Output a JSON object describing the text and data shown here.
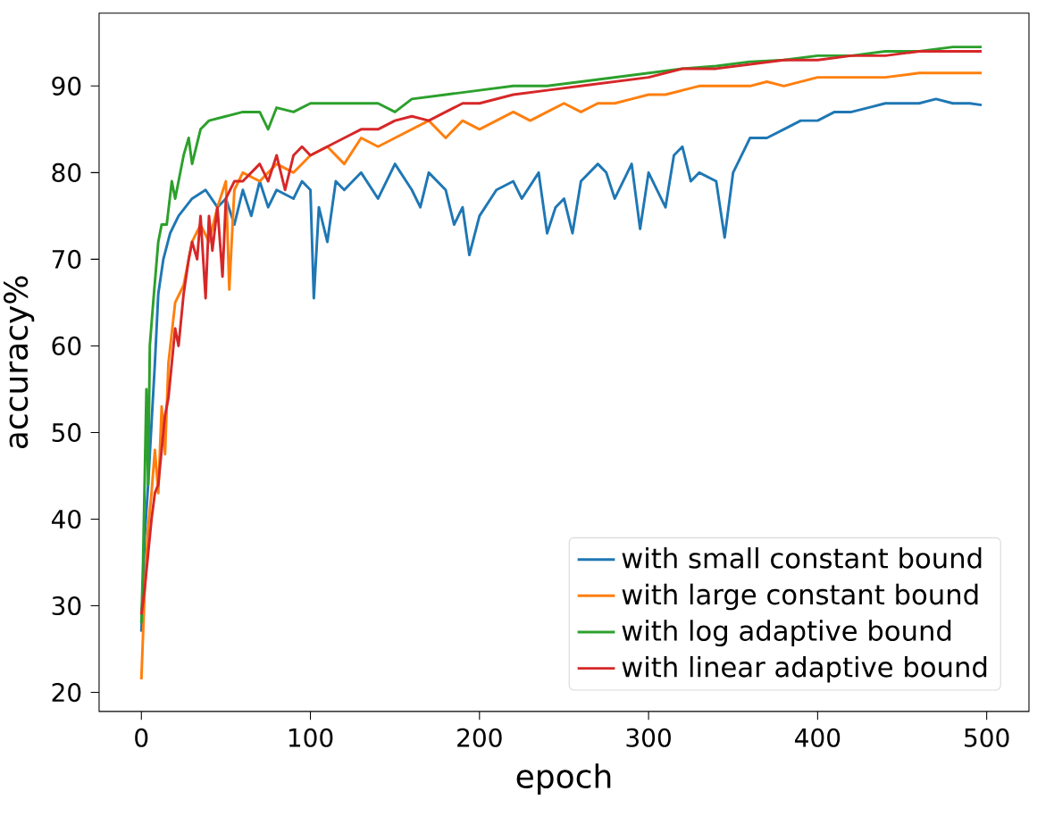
{
  "chart_data": {
    "type": "line",
    "xlabel": "epoch",
    "ylabel": "accuracy%",
    "xlim": [
      -25,
      525
    ],
    "ylim": [
      17.8,
      98.4
    ],
    "xticks": [
      0,
      100,
      200,
      300,
      400,
      500
    ],
    "yticks": [
      20,
      30,
      40,
      50,
      60,
      70,
      80,
      90
    ],
    "legend": "bottom right",
    "series": [
      {
        "name": "with small constant bound",
        "color": "#1f77b4",
        "x": [
          0,
          2,
          4,
          6,
          8,
          10,
          13,
          17,
          22,
          30,
          38,
          45,
          50,
          55,
          60,
          65,
          70,
          75,
          80,
          90,
          95,
          100,
          102,
          105,
          110,
          115,
          120,
          130,
          140,
          150,
          160,
          165,
          170,
          180,
          185,
          190,
          194,
          200,
          210,
          220,
          225,
          235,
          240,
          245,
          250,
          255,
          260,
          270,
          275,
          280,
          290,
          295,
          300,
          310,
          315,
          320,
          325,
          330,
          340,
          345,
          350,
          360,
          370,
          380,
          390,
          400,
          410,
          420,
          430,
          440,
          450,
          460,
          470,
          480,
          490,
          497
        ],
        "values": [
          27,
          38,
          44,
          51,
          58,
          66,
          70,
          73,
          75,
          77,
          78,
          76,
          77,
          74,
          78,
          75,
          79,
          76,
          78,
          77,
          79,
          78,
          65.5,
          76,
          72,
          79,
          78,
          80,
          77,
          81,
          78,
          76,
          80,
          78,
          74,
          76,
          70.5,
          75,
          78,
          79,
          77,
          80,
          73,
          76,
          77,
          73,
          79,
          81,
          80,
          77,
          81,
          73.5,
          80,
          76,
          82,
          83,
          79,
          80,
          79,
          72.5,
          80,
          84,
          84,
          85,
          86,
          86,
          87,
          87,
          87.5,
          88,
          88,
          88,
          88.5,
          88,
          88,
          87.8
        ]
      },
      {
        "name": "with large constant bound",
        "color": "#ff7f0e",
        "x": [
          0,
          2,
          4,
          6,
          8,
          10,
          12,
          14,
          16,
          20,
          25,
          30,
          35,
          40,
          45,
          50,
          52,
          55,
          60,
          70,
          80,
          90,
          100,
          110,
          120,
          130,
          140,
          150,
          160,
          170,
          180,
          190,
          200,
          210,
          220,
          230,
          240,
          250,
          260,
          270,
          280,
          290,
          300,
          310,
          320,
          330,
          340,
          350,
          360,
          370,
          380,
          390,
          400,
          420,
          440,
          460,
          480,
          497
        ],
        "values": [
          21.5,
          32,
          39,
          43,
          48,
          43,
          53,
          47.5,
          58,
          65,
          67,
          72,
          74,
          72,
          76,
          79,
          66.5,
          78,
          80,
          79,
          81,
          80,
          82,
          83,
          81,
          84,
          83,
          84,
          85,
          86,
          84,
          86,
          85,
          86,
          87,
          86,
          87,
          88,
          87,
          88,
          88,
          88.5,
          89,
          89,
          89.5,
          90,
          90,
          90,
          90,
          90.5,
          90,
          90.5,
          91,
          91,
          91,
          91.5,
          91.5,
          91.5
        ]
      },
      {
        "name": "with log adaptive bound",
        "color": "#2ca02c",
        "x": [
          0,
          1,
          2,
          3,
          4,
          5,
          7,
          10,
          12,
          15,
          18,
          20,
          22,
          25,
          28,
          30,
          35,
          40,
          50,
          60,
          70,
          75,
          80,
          90,
          100,
          120,
          140,
          150,
          160,
          180,
          200,
          220,
          240,
          260,
          280,
          300,
          320,
          340,
          360,
          380,
          400,
          420,
          440,
          460,
          480,
          497
        ],
        "values": [
          28,
          35,
          45,
          55,
          44,
          60,
          65,
          72,
          74,
          74,
          79,
          77,
          79,
          82,
          84,
          81,
          85,
          86,
          86.5,
          87,
          87,
          85,
          87.5,
          87,
          88,
          88,
          88,
          87,
          88.5,
          89,
          89.5,
          90,
          90,
          90.5,
          91,
          91.5,
          92,
          92.3,
          92.8,
          93,
          93.5,
          93.5,
          94,
          94,
          94.5,
          94.5
        ]
      },
      {
        "name": "with linear adaptive bound",
        "color": "#d62728",
        "x": [
          0,
          2,
          4,
          6,
          8,
          10,
          12,
          14,
          16,
          18,
          20,
          22,
          25,
          28,
          30,
          33,
          35,
          38,
          40,
          42,
          45,
          48,
          50,
          55,
          60,
          65,
          70,
          75,
          80,
          85,
          90,
          95,
          100,
          110,
          120,
          130,
          140,
          150,
          160,
          170,
          180,
          190,
          200,
          220,
          240,
          260,
          280,
          300,
          320,
          340,
          360,
          380,
          400,
          420,
          440,
          460,
          480,
          497
        ],
        "values": [
          29,
          32,
          36,
          40,
          43,
          44,
          48,
          52,
          54,
          58,
          62,
          60,
          66,
          70,
          72,
          70,
          75,
          65.5,
          75,
          71,
          76,
          68,
          77,
          79,
          79,
          80,
          81,
          79,
          82,
          78,
          82,
          83,
          82,
          83,
          84,
          85,
          85,
          86,
          86.5,
          86,
          87,
          88,
          88,
          89,
          89.5,
          90,
          90.5,
          91,
          92,
          92,
          92.5,
          93,
          93,
          93.5,
          93.5,
          94,
          94,
          94
        ]
      }
    ]
  }
}
